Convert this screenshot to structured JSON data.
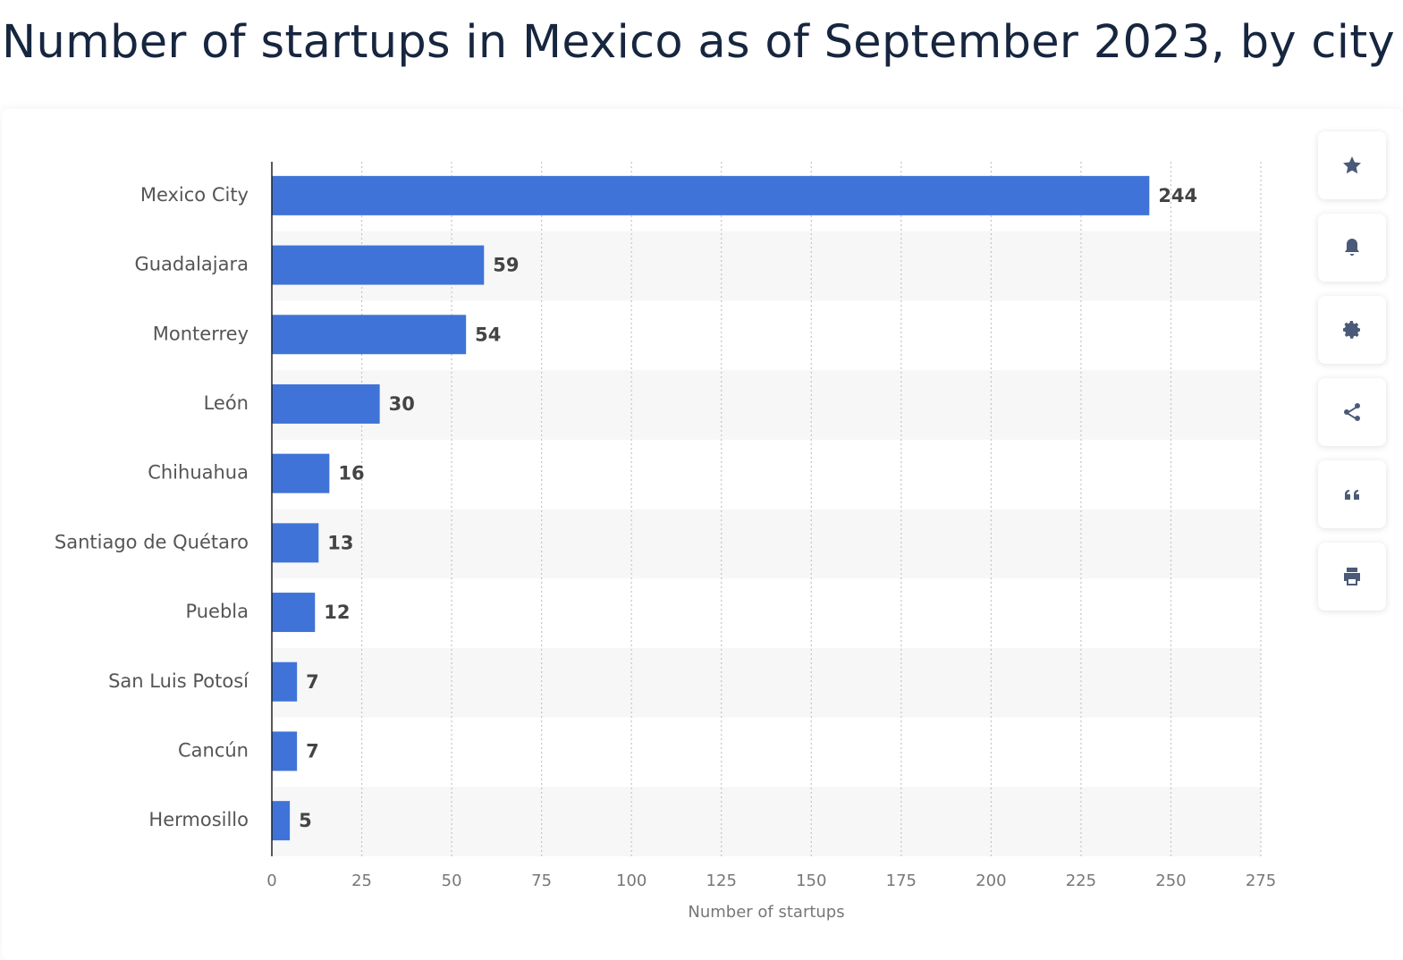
{
  "chart_data": {
    "type": "bar",
    "orientation": "horizontal",
    "title": "Number of startups in Mexico as of September 2023, by city",
    "x_label": "Number of startups",
    "categories": [
      "Mexico City",
      "Guadalajara",
      "Monterrey",
      "León",
      "Chihuahua",
      "Santiago de Quétaro",
      "Puebla",
      "San Luis Potosí",
      "Cancún",
      "Hermosillo"
    ],
    "values": [
      244,
      59,
      54,
      30,
      16,
      13,
      12,
      7,
      7,
      5
    ],
    "color": "#3f73d8",
    "xlim": [
      0,
      275
    ],
    "xticks": [
      0,
      25,
      50,
      75,
      100,
      125,
      150,
      175,
      200,
      225,
      250,
      275
    ],
    "grid": true
  }
}
